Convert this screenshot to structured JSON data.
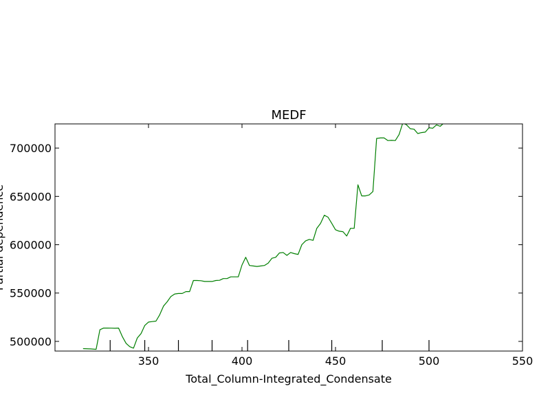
{
  "chart_data": {
    "type": "line",
    "title": "MEDF",
    "xlabel": "Total_Column-Integrated_Condensate",
    "ylabel": "Partial dependence",
    "xlim": [
      300,
      550
    ],
    "ylim": [
      490000,
      725000
    ],
    "x_ticks": [
      350,
      400,
      450,
      500,
      550
    ],
    "y_ticks": [
      500000,
      550000,
      600000,
      650000,
      700000
    ],
    "x_tick_labels": [
      "350",
      "400",
      "450",
      "500",
      "550"
    ],
    "y_tick_labels": [
      "500000",
      "550000",
      "600000",
      "650000",
      "700000"
    ],
    "rug_x": [
      329.5,
      348,
      366,
      384,
      403,
      425,
      448,
      475,
      500
    ],
    "grid": false,
    "legend": "none",
    "series": [
      {
        "color": "#007f00",
        "x": [
          315,
          319,
          322,
          324,
          326,
          328,
          330,
          332,
          334,
          336,
          338,
          340,
          342,
          344,
          346,
          348,
          350,
          352,
          354,
          356,
          358,
          360,
          362,
          364,
          366,
          368,
          370,
          372,
          374,
          376,
          378,
          380,
          382,
          384,
          386,
          388,
          390,
          392,
          394,
          396,
          398,
          400,
          402,
          404,
          406,
          408,
          410,
          412,
          414,
          416,
          418,
          420,
          422,
          424,
          426,
          428,
          430,
          432,
          434,
          436,
          438,
          440,
          442,
          444,
          446,
          448,
          450,
          452,
          454,
          456,
          458,
          460,
          462,
          464,
          466,
          468,
          470,
          472,
          474,
          476,
          478,
          480,
          482,
          484,
          486,
          488,
          490,
          492,
          494,
          496,
          498,
          500,
          502,
          504,
          506,
          508
        ],
        "y": [
          492500,
          492200,
          491800,
          512000,
          513800,
          513800,
          513700,
          513600,
          513800,
          505000,
          498000,
          494500,
          493000,
          503500,
          508000,
          516500,
          520000,
          520500,
          521000,
          527500,
          536500,
          541000,
          546500,
          549000,
          549500,
          549500,
          551500,
          551500,
          563000,
          563000,
          562800,
          562000,
          562000,
          562000,
          563000,
          563200,
          565000,
          565000,
          566800,
          566800,
          566800,
          579000,
          587000,
          578500,
          578000,
          577500,
          578000,
          578500,
          581000,
          586000,
          587000,
          591500,
          592000,
          589000,
          592000,
          590800,
          590000,
          600000,
          604000,
          605500,
          604500,
          617000,
          622000,
          630500,
          628500,
          622000,
          615500,
          614000,
          613500,
          609000,
          617000,
          617000,
          662000,
          650500,
          650500,
          651500,
          655000,
          710000,
          710500,
          710500,
          707800,
          708000,
          707800,
          714000,
          726000,
          724000,
          720000,
          719500,
          715000,
          716000,
          716500,
          721000,
          720500,
          724000,
          722500,
          726000
        ]
      }
    ]
  }
}
